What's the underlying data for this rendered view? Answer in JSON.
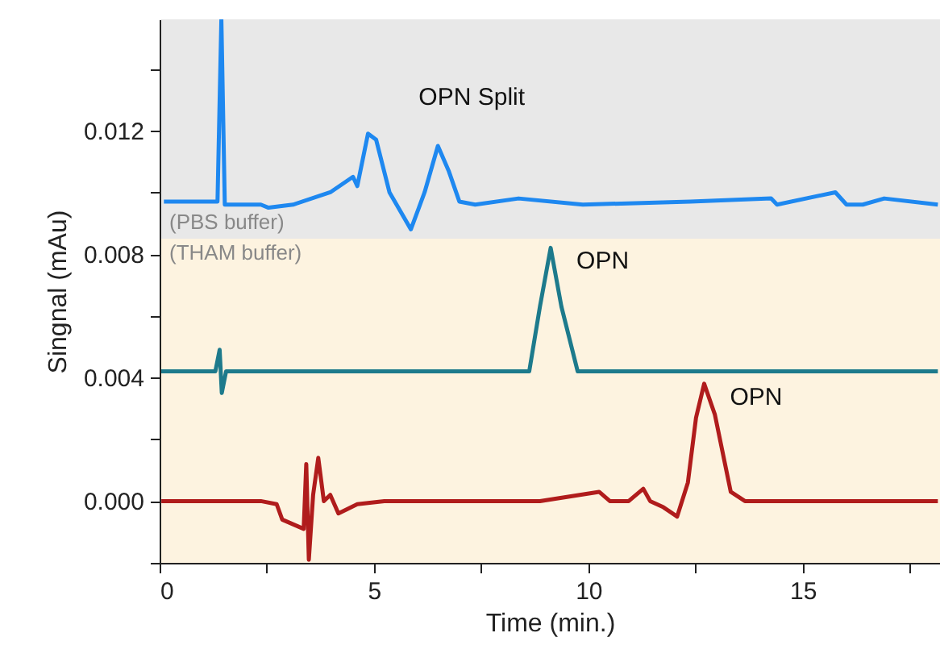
{
  "chart_data": {
    "type": "line",
    "xlabel": "Time (min.)",
    "ylabel": "Singnal (mAu)",
    "xlim": [
      0,
      18.2
    ],
    "ylim": [
      -0.002,
      0.0156
    ],
    "xticks": [
      0,
      {
        "value": 2.5,
        "label": null
      },
      5,
      {
        "value": 7.5,
        "label": null
      },
      10,
      {
        "value": 12.5,
        "label": null
      },
      15,
      {
        "value": 17.5,
        "label": null
      }
    ],
    "yticks": [
      {
        "value": -0.002,
        "label": null
      },
      {
        "value": 0,
        "label": "0.000"
      },
      {
        "value": 0.002,
        "label": null
      },
      {
        "value": 0.004,
        "label": "0.004"
      },
      {
        "value": 0.006,
        "label": null
      },
      {
        "value": 0.008,
        "label": "0.008"
      },
      {
        "value": 0.01,
        "label": null
      },
      {
        "value": 0.012,
        "label": "0.012"
      },
      {
        "value": 0.014,
        "label": null
      }
    ],
    "marker": "none",
    "line_style": "solid",
    "bands": [
      {
        "axis": "y",
        "from": 0.0085,
        "to": 0.0156,
        "label": "(PBS buffer)",
        "color": "#e8e8e8"
      },
      {
        "axis": "y",
        "from": 0.0085,
        "to": -0.002,
        "label": "(THAM buffer)",
        "color": "#fdf3e0"
      }
    ],
    "series": [
      {
        "color": "#1e88f0",
        "x": [
          0.1,
          1.35,
          1.44,
          1.52,
          2.36,
          2.54,
          3.11,
          3.98,
          4.51,
          4.61,
          4.86,
          5.05,
          5.36,
          5.86,
          6.18,
          6.49,
          6.74,
          6.99,
          7.36,
          8.37,
          9.87,
          12.38,
          14.26,
          14.4,
          15.76,
          16.02,
          16.4,
          16.9,
          18.15
        ],
        "values": [
          0.0097,
          0.0097,
          0.0156,
          0.0096,
          0.0096,
          0.0095,
          0.0096,
          0.01,
          0.0105,
          0.0102,
          0.0119,
          0.0117,
          0.01,
          0.0088,
          0.01,
          0.0115,
          0.0107,
          0.0097,
          0.0096,
          0.0098,
          0.0096,
          0.0097,
          0.0098,
          0.0096,
          0.01,
          0.0096,
          0.0096,
          0.0098,
          0.0096
        ]
      },
      {
        "color": "#1d7a8c",
        "x": [
          0.0,
          1.3,
          1.4,
          1.45,
          1.55,
          5.0,
          8.62,
          8.87,
          9.12,
          9.37,
          9.75,
          12.0,
          18.15
        ],
        "values": [
          0.0042,
          0.0042,
          0.0049,
          0.0035,
          0.0042,
          0.0042,
          0.0042,
          0.0063,
          0.0082,
          0.0063,
          0.0042,
          0.0042,
          0.0042
        ]
      },
      {
        "color": "#b01c1c",
        "x": [
          0.04,
          2.36,
          2.73,
          2.86,
          3.36,
          3.42,
          3.48,
          3.58,
          3.7,
          3.83,
          3.98,
          4.17,
          4.61,
          5.24,
          7.37,
          8.87,
          10.25,
          10.5,
          10.94,
          11.28,
          11.44,
          11.75,
          12.07,
          12.32,
          12.51,
          12.7,
          12.95,
          13.32,
          13.65,
          18.15
        ],
        "values": [
          0.0,
          0.0,
          -0.0001,
          -0.0006,
          -0.0009,
          0.0012,
          -0.0019,
          0.0002,
          0.0014,
          0.0,
          0.0002,
          -0.0004,
          -0.0001,
          0.0,
          0.0,
          0.0,
          0.0003,
          0.0,
          0.0,
          0.0004,
          0.0,
          -0.0002,
          -0.0005,
          0.0006,
          0.0027,
          0.0038,
          0.0028,
          0.0003,
          0.0,
          0.0
        ]
      }
    ],
    "annotations": [
      "OPN Split",
      {
        "text": "OPN",
        "x": 9.12,
        "y": 0.0082
      },
      {
        "text": "OPN",
        "x": 12.7,
        "y": 0.0038
      }
    ]
  }
}
